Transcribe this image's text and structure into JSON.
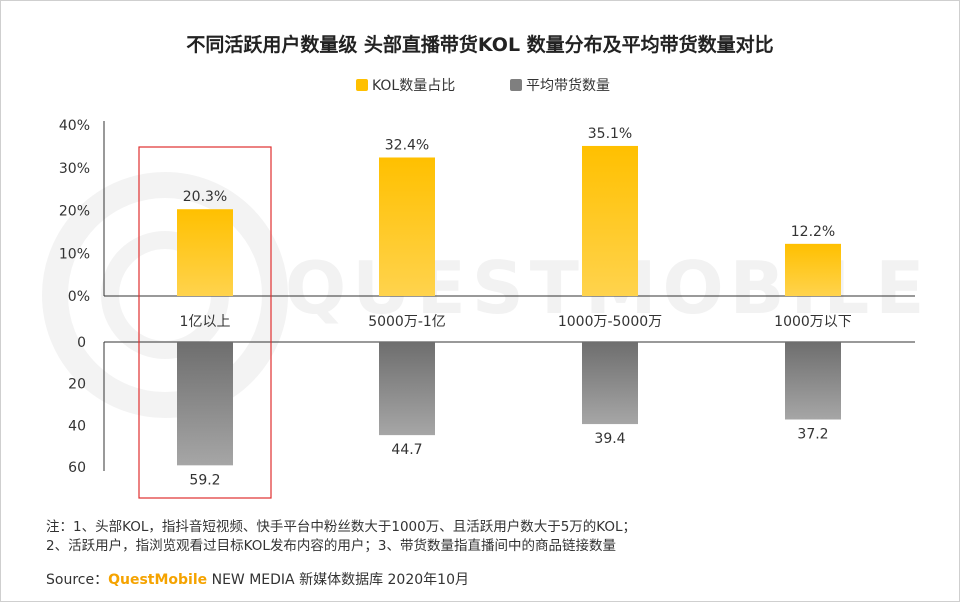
{
  "title": "不同活跃用户数量级 头部直播带货KOL 数量分布及平均带货数量对比",
  "legend": {
    "kol_share": "KOL数量占比",
    "avg_goods": "平均带货数量"
  },
  "colors": {
    "yellow": "#ffc000",
    "yellow_light": "#ffd34d",
    "gray": "#7f7f7f",
    "gray_light": "#a6a6a6",
    "highlight": "#e03030",
    "axis": "#333333"
  },
  "chart_data": {
    "type": "bar",
    "categories": [
      "1亿以上",
      "5000万-1亿",
      "1000万-5000万",
      "1000万以下"
    ],
    "series": [
      {
        "name": "KOL数量占比",
        "unit": "%",
        "values": [
          20.3,
          32.4,
          35.1,
          12.2
        ],
        "labels": [
          "20.3%",
          "32.4%",
          "35.1%",
          "12.2%"
        ],
        "ylim": [
          0,
          40
        ],
        "ticks": [
          "40%",
          "30%",
          "20%",
          "10%",
          "0%"
        ]
      },
      {
        "name": "平均带货数量",
        "values": [
          59.2,
          44.7,
          39.4,
          37.2
        ],
        "labels": [
          "59.2",
          "44.7",
          "39.4",
          "37.2"
        ],
        "ylim": [
          0,
          60
        ],
        "ticks": [
          "0",
          "20",
          "40",
          "60"
        ],
        "inverted": true
      }
    ],
    "highlighted_category": "1亿以上"
  },
  "notes": {
    "line1": "注：1、头部KOL，指抖音短视频、快手平台中粉丝数大于1000万、且活跃用户数大于5万的KOL；",
    "line2": "2、活跃用户，指浏览观看过目标KOL发布内容的用户；3、带货数量指直播间中的商品链接数量"
  },
  "source": {
    "prefix": "Source：",
    "brand": "QuestMobile",
    "rest": " NEW MEDIA 新媒体数据库 2020年10月"
  },
  "watermark": "QUESTMOBILE"
}
